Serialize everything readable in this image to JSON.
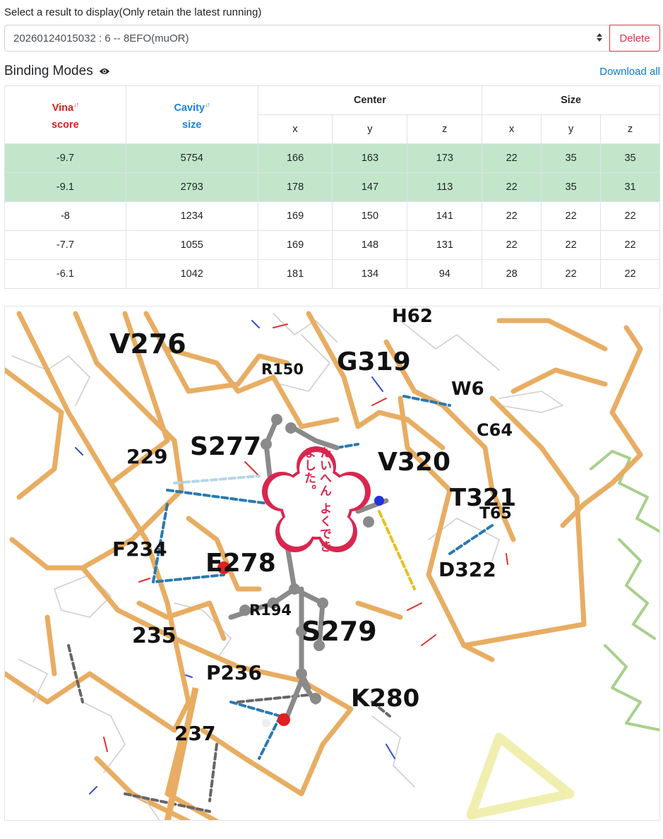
{
  "selector": {
    "label": "Select a result to display(Only retain the latest running)",
    "selected_value": "20260124015032 : 6 -- 8EFO(muOR)",
    "delete_label": "Delete"
  },
  "binding_modes": {
    "title": "Binding Modes",
    "download_label": "Download all",
    "headers": {
      "vina_line1": "Vina",
      "vina_line2": "score",
      "cavity_line1": "Cavity",
      "cavity_line2": "size",
      "center": "Center",
      "size": "Size",
      "x": "x",
      "y": "y",
      "z": "z"
    },
    "rows": [
      {
        "vina": "-9.7",
        "cavity": "5754",
        "cx": "166",
        "cy": "163",
        "cz": "173",
        "sx": "22",
        "sy": "35",
        "sz": "35",
        "highlighted": true
      },
      {
        "vina": "-9.1",
        "cavity": "2793",
        "cx": "178",
        "cy": "147",
        "cz": "113",
        "sx": "22",
        "sy": "35",
        "sz": "31",
        "highlighted": true
      },
      {
        "vina": "-8",
        "cavity": "1234",
        "cx": "169",
        "cy": "150",
        "cz": "141",
        "sx": "22",
        "sy": "22",
        "sz": "22",
        "highlighted": false
      },
      {
        "vina": "-7.7",
        "cavity": "1055",
        "cx": "169",
        "cy": "148",
        "cz": "131",
        "sx": "22",
        "sy": "22",
        "sz": "22",
        "highlighted": false
      },
      {
        "vina": "-6.1",
        "cavity": "1042",
        "cx": "181",
        "cy": "134",
        "cz": "94",
        "sx": "28",
        "sy": "22",
        "sz": "22",
        "highlighted": false
      }
    ],
    "highlight_color": "#c3e6cb"
  },
  "viewer": {
    "residue_labels": {
      "v276": "V276",
      "h62": "H62",
      "r150": "R150",
      "g319": "G319",
      "w6": "W6",
      "c64": "C64",
      "s277": "S277",
      "l228": "229",
      "v320": "V320",
      "t321": "T321",
      "t65": "T65",
      "f234": "F234",
      "e278": "E278",
      "d322": "D322",
      "r194": "R194",
      "s279": "S279",
      "l235": "235",
      "p236": "P236",
      "k280": "K280",
      "l237": "237"
    },
    "sticker_text": "たいへん よくでき ました。",
    "colors": {
      "backbone": "#e8ad62",
      "secondary_chain": "#a8d08d",
      "ligand_carbon": "#8a8a8a",
      "hbond": "#2a7ab0",
      "salt_bridge": "#e8c020",
      "hydrophobic": "#666666",
      "sticker": "#d9264f"
    }
  }
}
